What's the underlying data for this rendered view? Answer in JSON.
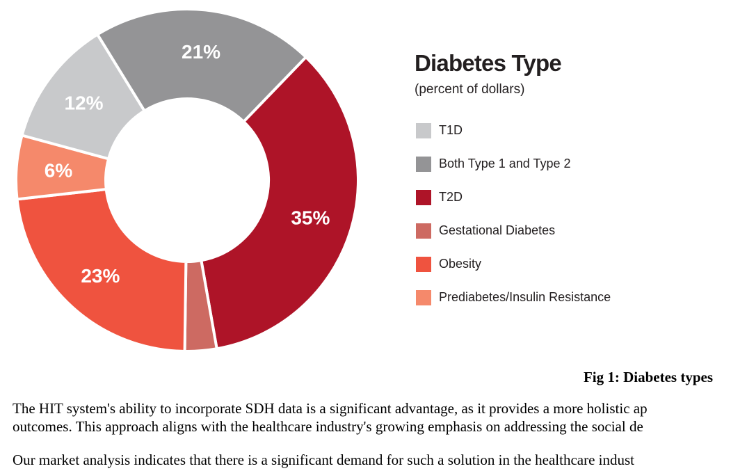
{
  "chart_data": {
    "type": "pie",
    "title": "Diabetes Type",
    "subtitle": "(percent of dollars)",
    "slices": [
      {
        "label": "T2D",
        "value": 35,
        "display": "35%",
        "color": "#ae1428"
      },
      {
        "label": "Gestational Diabetes",
        "value": 3,
        "display": "3%",
        "color": "#cd6a62"
      },
      {
        "label": "Obesity",
        "value": 23,
        "display": "23%",
        "color": "#ef533f"
      },
      {
        "label": "Prediabetes/Insulin Resistance",
        "value": 6,
        "display": "6%",
        "color": "#f5896b"
      },
      {
        "label": "T1D",
        "value": 12,
        "display": "12%",
        "color": "#c8c9cb"
      },
      {
        "label": "Both Type 1 and Type 2",
        "value": 21,
        "display": "21%",
        "color": "#949496"
      }
    ],
    "legend": [
      {
        "label": "T1D",
        "color": "#c8c9cb"
      },
      {
        "label": "Both Type 1 and Type 2",
        "color": "#949496"
      },
      {
        "label": "T2D",
        "color": "#ae1428"
      },
      {
        "label": "Gestational Diabetes",
        "color": "#cd6a62"
      },
      {
        "label": "Obesity",
        "color": "#ef533f"
      },
      {
        "label": "Prediabetes/Insulin Resistance",
        "color": "#f5896b"
      }
    ],
    "small_label_color": "#a6a6a6",
    "legend_placement": "right"
  },
  "caption": "Fig 1: Diabetes types",
  "paragraphs": [
    "The HIT system's ability to incorporate SDH data is a significant advantage, as it provides a more holistic ap",
    "outcomes. This approach aligns with the healthcare industry's growing emphasis on addressing the social de",
    "Our market analysis indicates that there is a significant demand for such a solution in the healthcare indust"
  ]
}
